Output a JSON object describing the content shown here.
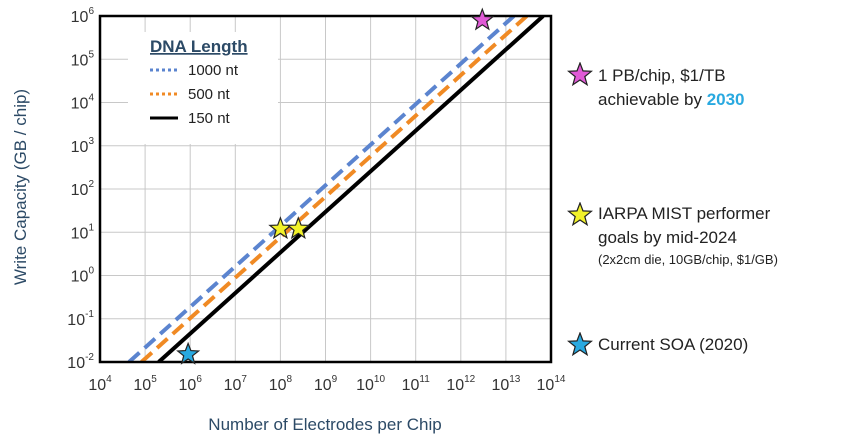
{
  "chart_data": {
    "type": "line",
    "xlabel": "Number of Electrodes per Chip",
    "ylabel": "Write Capacity (GB / chip)",
    "x_scale": "log",
    "y_scale": "log",
    "xlim": [
      10000,
      100000000000000
    ],
    "ylim": [
      0.01,
      1000000
    ],
    "grid": true,
    "x_ticks": [
      {
        "base": "10",
        "exp": "4",
        "value": 10000
      },
      {
        "base": "10",
        "exp": "5",
        "value": 100000
      },
      {
        "base": "10",
        "exp": "6",
        "value": 1000000
      },
      {
        "base": "10",
        "exp": "7",
        "value": 10000000
      },
      {
        "base": "10",
        "exp": "8",
        "value": 100000000
      },
      {
        "base": "10",
        "exp": "9",
        "value": 1000000000
      },
      {
        "base": "10",
        "exp": "10",
        "value": 10000000000
      },
      {
        "base": "10",
        "exp": "11",
        "value": 100000000000
      },
      {
        "base": "10",
        "exp": "12",
        "value": 1000000000000
      },
      {
        "base": "10",
        "exp": "13",
        "value": 10000000000000
      },
      {
        "base": "10",
        "exp": "14",
        "value": 100000000000000
      }
    ],
    "y_ticks": [
      {
        "base": "10",
        "exp": "-2",
        "value": 0.01
      },
      {
        "base": "10",
        "exp": "-1",
        "value": 0.1
      },
      {
        "base": "10",
        "exp": "0",
        "value": 1
      },
      {
        "base": "10",
        "exp": "1",
        "value": 10
      },
      {
        "base": "10",
        "exp": "2",
        "value": 100
      },
      {
        "base": "10",
        "exp": "3",
        "value": 1000
      },
      {
        "base": "10",
        "exp": "4",
        "value": 10000
      },
      {
        "base": "10",
        "exp": "5",
        "value": 100000
      },
      {
        "base": "10",
        "exp": "6",
        "value": 1000000
      }
    ],
    "legend": {
      "title": "DNA Length",
      "position": "top-left"
    },
    "series": [
      {
        "name": "1000 nt",
        "color": "#5b84cf",
        "style": "dashed",
        "x": [
          44000,
          15000000000000
        ],
        "y": [
          0.01,
          1000000
        ]
      },
      {
        "name": "500 nt",
        "color": "#f08a24",
        "style": "dashed",
        "x": [
          83000,
          29000000000000
        ],
        "y": [
          0.01,
          1000000
        ]
      },
      {
        "name": "150 nt",
        "color": "#000000",
        "style": "solid",
        "x": [
          200000,
          67000000000000
        ],
        "y": [
          0.01,
          1000000
        ]
      }
    ],
    "points": [
      {
        "label": "1 PB/chip, $1/TB achievable by 2030",
        "x": 3000000000000,
        "y": 800000,
        "color": "#e05ad6"
      },
      {
        "label": "IARPA MIST performer goals by mid-2024",
        "x": 100000000,
        "y": 12,
        "color": "#f2f22a"
      },
      {
        "label": "IARPA MIST performer goals by mid-2024",
        "x": 250000000,
        "y": 12,
        "color": "#f2f22a"
      },
      {
        "label": "Current SOA (2020)",
        "x": 900000,
        "y": 0.015,
        "color": "#29a9e0"
      }
    ]
  },
  "annotations": {
    "pb_line1": "1 PB/chip, $1/TB",
    "pb_line2_prefix": "achievable by ",
    "pb_year": "2030",
    "iarpa_line1": "IARPA MIST performer",
    "iarpa_line2": "goals by mid-2024",
    "iarpa_line3": "(2x2cm die, 10GB/chip, $1/GB)",
    "soa": "Current SOA (2020)"
  }
}
